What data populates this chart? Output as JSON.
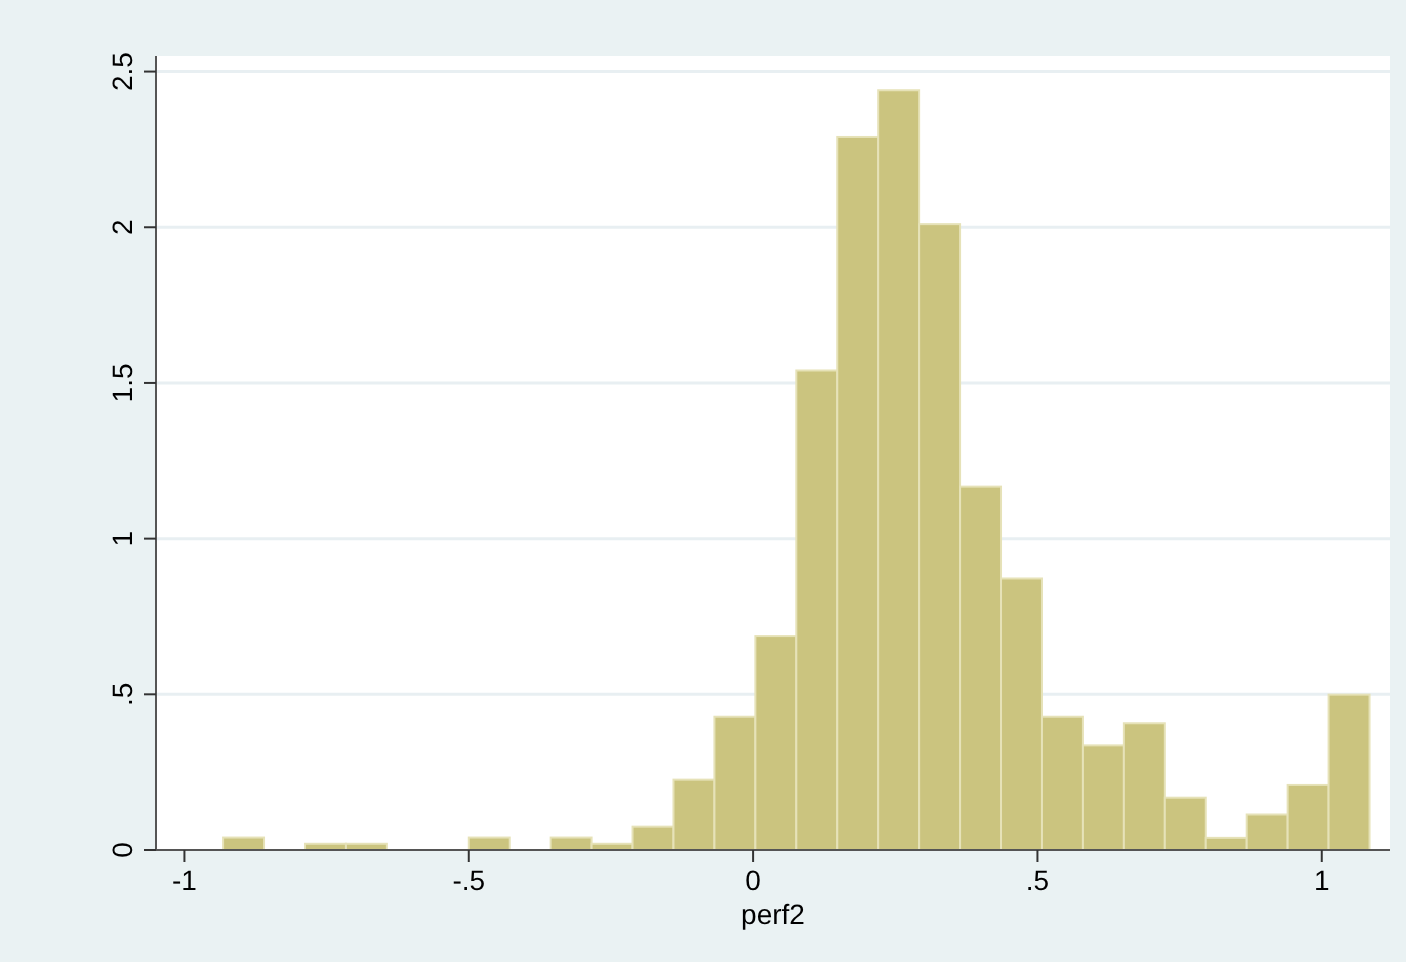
{
  "chart_data": {
    "type": "histogram",
    "xlabel": "perf2",
    "bins": [
      -0.932,
      -0.86,
      -0.788,
      -0.716,
      -0.644,
      -0.572,
      -0.5,
      -0.428,
      -0.356,
      -0.284,
      -0.212,
      -0.14,
      -0.068,
      0.004,
      0.076,
      0.148,
      0.22,
      0.292,
      0.364,
      0.436,
      0.508,
      0.58,
      0.652,
      0.724,
      0.796,
      0.868,
      0.94,
      1.012,
      1.084
    ],
    "values": [
      0.04,
      0,
      0.02,
      0.02,
      0,
      0,
      0.04,
      0,
      0.04,
      0.02,
      0.075,
      0.226,
      0.428,
      0.687,
      1.54,
      2.29,
      2.44,
      2.01,
      1.167,
      0.872,
      0.428,
      0.336,
      0.407,
      0.168,
      0.039,
      0.114,
      0.209,
      0.499
    ],
    "color": "#cbc47f",
    "xlim": [
      -1.05,
      1.12
    ],
    "ylim": [
      0,
      2.55
    ],
    "xticks": [
      {
        "value": -1,
        "label": "-1"
      },
      {
        "value": -0.5,
        "label": "-.5"
      },
      {
        "value": 0,
        "label": "0"
      },
      {
        "value": 0.5,
        "label": ".5"
      },
      {
        "value": 1,
        "label": "1"
      }
    ],
    "yticks": [
      {
        "value": 0,
        "label": "0"
      },
      {
        "value": 0.5,
        "label": ".5"
      },
      {
        "value": 1,
        "label": "1"
      },
      {
        "value": 1.5,
        "label": "1.5"
      },
      {
        "value": 2,
        "label": "2"
      },
      {
        "value": 2.5,
        "label": "2.5"
      }
    ],
    "grid": "y"
  }
}
